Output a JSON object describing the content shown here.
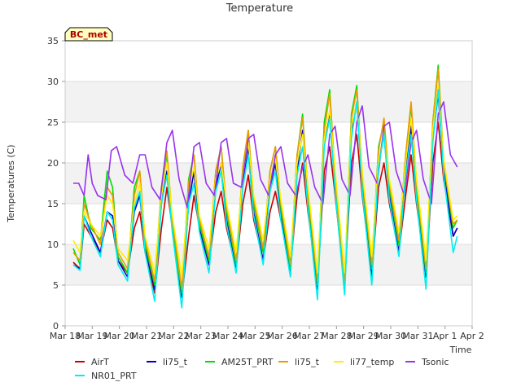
{
  "chart_data": {
    "type": "line",
    "title": "Temperature",
    "xlabel": "Time",
    "ylabel": "Temperatures (C)",
    "badge": "BC_met",
    "ylim": [
      0,
      35
    ],
    "yticks": [
      0,
      5,
      10,
      15,
      20,
      25,
      30,
      35
    ],
    "xlim": [
      0,
      15
    ],
    "xtick_labels": [
      "Mar 18",
      "Mar 19",
      "Mar 20",
      "Mar 21",
      "Mar 22",
      "Mar 23",
      "Mar 24",
      "Mar 25",
      "Mar 26",
      "Mar 27",
      "Mar 28",
      "Mar 29",
      "Mar 30",
      "Mar 31",
      "Apr 1",
      "Apr 2"
    ],
    "xtick_values": [
      0,
      1,
      2,
      3,
      4,
      5,
      6,
      7,
      8,
      9,
      10,
      11,
      12,
      13,
      14,
      15
    ],
    "grid": "horizontal bands",
    "legend_position": "bottom",
    "series": [
      {
        "name": "AirT",
        "color": "#cc0000",
        "x": [
          0.3,
          0.55,
          0.7,
          0.95,
          1.3,
          1.55,
          1.75,
          1.95,
          2.3,
          2.55,
          2.75,
          2.95,
          3.3,
          3.55,
          3.75,
          3.95,
          4.3,
          4.55,
          4.75,
          4.95,
          5.3,
          5.55,
          5.75,
          5.95,
          6.3,
          6.55,
          6.75,
          6.95,
          7.3,
          7.55,
          7.75,
          7.95,
          8.3,
          8.55,
          8.75,
          8.95,
          9.3,
          9.55,
          9.75,
          9.95,
          10.3,
          10.55,
          10.75,
          10.95,
          11.3,
          11.55,
          11.75,
          11.95,
          12.3,
          12.55,
          12.75,
          12.95,
          13.3,
          13.55,
          13.75,
          13.95,
          14.3,
          14.45
        ],
        "y": [
          7.8,
          7.0,
          12.5,
          11.0,
          9.0,
          13.0,
          12.0,
          8.0,
          6.5,
          12.0,
          14.0,
          9.0,
          4.0,
          12.0,
          17.0,
          12.0,
          3.5,
          11.0,
          16.0,
          12.0,
          7.5,
          14.0,
          16.5,
          12.0,
          7.0,
          15.0,
          18.5,
          13.0,
          8.0,
          14.0,
          16.5,
          13.0,
          7.0,
          16.0,
          20.0,
          14.0,
          5.0,
          19.0,
          22.0,
          16.0,
          5.0,
          20.0,
          23.5,
          16.0,
          6.0,
          17.0,
          20.0,
          15.0,
          9.0,
          16.0,
          21.0,
          15.0,
          6.0,
          20.0,
          25.0,
          18.0,
          11.0,
          12.0
        ]
      },
      {
        "name": "li75_t",
        "color": "#0000cc",
        "x": [
          0.3,
          0.55,
          0.7,
          0.95,
          1.3,
          1.55,
          1.75,
          1.95,
          2.3,
          2.55,
          2.75,
          2.95,
          3.3,
          3.55,
          3.75,
          3.95,
          4.3,
          4.55,
          4.75,
          4.95,
          5.3,
          5.55,
          5.75,
          5.95,
          6.3,
          6.55,
          6.75,
          6.95,
          7.3,
          7.55,
          7.75,
          7.95,
          8.3,
          8.55,
          8.75,
          8.95,
          9.3,
          9.55,
          9.75,
          9.95,
          10.3,
          10.55,
          10.75,
          10.95,
          11.3,
          11.55,
          11.75,
          11.95,
          12.3,
          12.55,
          12.75,
          12.95,
          13.3,
          13.55,
          13.75,
          13.95,
          14.3,
          14.45
        ],
        "y": [
          7.5,
          7.0,
          13.5,
          11.5,
          9.0,
          14.0,
          13.5,
          8.0,
          6.0,
          14.0,
          16.0,
          9.5,
          4.5,
          15.0,
          19.0,
          12.0,
          3.5,
          15.0,
          19.0,
          12.0,
          7.5,
          17.0,
          20.0,
          13.0,
          7.0,
          17.5,
          22.0,
          14.0,
          8.0,
          17.0,
          20.0,
          13.5,
          6.5,
          19.0,
          24.0,
          15.0,
          4.5,
          23.0,
          26.0,
          17.0,
          4.5,
          24.0,
          27.5,
          17.0,
          6.0,
          20.0,
          23.5,
          16.0,
          9.0,
          19.0,
          24.5,
          16.0,
          6.0,
          23.0,
          28.5,
          19.0,
          11.0,
          12.0
        ]
      },
      {
        "name": "AM25T_PRT",
        "color": "#00dd00",
        "x": [
          0.3,
          0.55,
          0.7,
          0.95,
          1.3,
          1.55,
          1.75,
          1.95,
          2.3,
          2.55,
          2.75,
          2.95,
          3.3,
          3.55,
          3.75,
          3.95,
          4.3,
          4.55,
          4.75,
          4.95,
          5.3,
          5.55,
          5.75,
          5.95,
          6.3,
          6.55,
          6.75,
          6.95,
          7.3,
          7.55,
          7.75,
          7.95,
          8.3,
          8.55,
          8.75,
          8.95,
          9.3,
          9.55,
          9.75,
          9.95,
          10.3,
          10.55,
          10.75,
          10.95,
          11.3,
          11.55,
          11.75,
          11.95,
          12.3,
          12.55,
          12.75,
          12.95,
          13.3,
          13.55,
          13.75,
          13.95,
          14.3,
          14.45
        ],
        "y": [
          9.5,
          7.5,
          16.0,
          12.0,
          10.5,
          19.0,
          17.0,
          8.5,
          6.5,
          17.0,
          19.0,
          10.0,
          5.0,
          17.0,
          21.0,
          12.0,
          4.0,
          18.0,
          21.0,
          12.5,
          8.0,
          19.0,
          22.0,
          14.0,
          7.5,
          19.5,
          24.0,
          15.0,
          9.0,
          19.0,
          22.0,
          14.5,
          7.0,
          21.0,
          26.0,
          16.0,
          5.0,
          25.0,
          29.0,
          18.0,
          5.0,
          26.0,
          29.5,
          18.0,
          7.0,
          22.0,
          25.0,
          17.0,
          10.0,
          21.0,
          27.0,
          17.0,
          6.5,
          25.0,
          32.0,
          20.0,
          12.0,
          13.0
        ]
      },
      {
        "name": "li75_t",
        "color": "#ee9900",
        "x": [
          0.3,
          0.55,
          0.7,
          0.95,
          1.3,
          1.55,
          1.75,
          1.95,
          2.3,
          2.55,
          2.75,
          2.95,
          3.3,
          3.55,
          3.75,
          3.95,
          4.3,
          4.55,
          4.75,
          4.95,
          5.3,
          5.55,
          5.75,
          5.95,
          6.3,
          6.55,
          6.75,
          6.95,
          7.3,
          7.55,
          7.75,
          7.95,
          8.3,
          8.55,
          8.75,
          8.95,
          9.3,
          9.55,
          9.75,
          9.95,
          10.3,
          10.55,
          10.75,
          10.95,
          11.3,
          11.55,
          11.75,
          11.95,
          12.3,
          12.55,
          12.75,
          12.95,
          13.3,
          13.55,
          13.75,
          13.95,
          14.3,
          14.45
        ],
        "y": [
          9.0,
          8.0,
          15.0,
          12.5,
          10.0,
          17.0,
          16.0,
          9.0,
          7.0,
          16.0,
          19.0,
          10.5,
          5.5,
          17.0,
          21.5,
          13.0,
          4.5,
          17.5,
          21.0,
          13.0,
          8.5,
          19.0,
          22.0,
          14.5,
          8.0,
          19.5,
          24.0,
          15.5,
          9.5,
          19.0,
          22.0,
          15.0,
          7.5,
          21.0,
          25.5,
          16.5,
          5.5,
          24.0,
          28.5,
          18.5,
          5.5,
          25.5,
          29.0,
          18.5,
          7.5,
          21.5,
          25.5,
          17.5,
          10.5,
          21.0,
          27.5,
          17.5,
          7.0,
          25.0,
          31.5,
          20.0,
          12.5,
          13.0
        ]
      },
      {
        "name": "li77_temp",
        "color": "#ffee00",
        "x": [
          0.3,
          0.55,
          0.7,
          0.95,
          1.3,
          1.55,
          1.75,
          1.95,
          2.3,
          2.55,
          2.75,
          2.95,
          3.3,
          3.55,
          3.75,
          3.95,
          4.3,
          4.55,
          4.75,
          4.95,
          5.3,
          5.55,
          5.75,
          5.95,
          6.3,
          6.55,
          6.75,
          6.95,
          7.3,
          7.55,
          7.75,
          7.95,
          8.3,
          8.55,
          8.75,
          8.95,
          9.3,
          9.55,
          9.75,
          9.95,
          10.3,
          10.55,
          10.75,
          10.95,
          11.3,
          11.55,
          11.75,
          11.95,
          12.3,
          12.55,
          12.75,
          12.95,
          13.3,
          13.55,
          13.75,
          13.95,
          14.3,
          14.45
        ],
        "y": [
          10.5,
          9.0,
          14.0,
          12.5,
          11.0,
          16.0,
          15.0,
          9.5,
          8.0,
          15.0,
          17.5,
          11.0,
          6.5,
          16.0,
          20.0,
          13.5,
          6.0,
          16.5,
          19.5,
          13.5,
          9.5,
          18.0,
          20.0,
          15.0,
          9.0,
          18.5,
          22.5,
          16.0,
          10.5,
          18.0,
          20.5,
          15.5,
          8.5,
          20.0,
          23.5,
          17.0,
          6.5,
          23.0,
          26.5,
          19.0,
          6.5,
          24.5,
          27.5,
          19.0,
          8.5,
          20.5,
          23.5,
          18.0,
          11.5,
          20.0,
          25.5,
          18.0,
          8.0,
          24.0,
          29.5,
          20.5,
          13.0,
          13.5
        ]
      },
      {
        "name": "Tsonic",
        "color": "#9933ee",
        "x": [
          0.3,
          0.5,
          0.7,
          0.85,
          1.0,
          1.2,
          1.5,
          1.7,
          1.9,
          2.2,
          2.5,
          2.75,
          2.95,
          3.2,
          3.5,
          3.75,
          3.95,
          4.2,
          4.5,
          4.75,
          4.95,
          5.2,
          5.5,
          5.75,
          5.95,
          6.2,
          6.5,
          6.75,
          6.95,
          7.2,
          7.5,
          7.75,
          7.95,
          8.2,
          8.5,
          8.75,
          8.95,
          9.2,
          9.5,
          9.75,
          9.95,
          10.2,
          10.5,
          10.75,
          10.95,
          11.2,
          11.5,
          11.75,
          11.95,
          12.2,
          12.5,
          12.75,
          12.95,
          13.2,
          13.5,
          13.75,
          13.95,
          14.2,
          14.45
        ],
        "y": [
          17.5,
          17.5,
          16.0,
          21.0,
          17.5,
          16.0,
          15.5,
          21.5,
          22.0,
          18.5,
          17.5,
          21.0,
          21.0,
          17.0,
          15.5,
          22.5,
          24.0,
          18.0,
          14.5,
          22.0,
          22.5,
          17.5,
          16.0,
          22.5,
          23.0,
          17.5,
          17.0,
          23.0,
          23.5,
          18.0,
          16.0,
          21.0,
          22.0,
          17.5,
          16.0,
          19.5,
          21.0,
          17.0,
          15.0,
          23.5,
          24.5,
          18.0,
          16.0,
          25.0,
          27.0,
          19.5,
          17.5,
          24.5,
          25.0,
          19.0,
          16.0,
          22.5,
          24.0,
          18.0,
          15.0,
          26.0,
          27.5,
          21.0,
          19.5
        ]
      },
      {
        "name": "NR01_PRT",
        "color": "#00eeee",
        "x": [
          0.3,
          0.55,
          0.7,
          0.95,
          1.3,
          1.55,
          1.75,
          1.95,
          2.3,
          2.55,
          2.75,
          2.95,
          3.3,
          3.55,
          3.75,
          3.95,
          4.3,
          4.55,
          4.75,
          4.95,
          5.3,
          5.55,
          5.75,
          5.95,
          6.3,
          6.55,
          6.75,
          6.95,
          7.3,
          7.55,
          7.75,
          7.95,
          8.3,
          8.55,
          8.75,
          8.95,
          9.3,
          9.55,
          9.75,
          9.95,
          10.3,
          10.55,
          10.75,
          10.95,
          11.3,
          11.55,
          11.75,
          11.95,
          12.3,
          12.55,
          12.75,
          12.95,
          13.3,
          13.55,
          13.75,
          13.95,
          14.3,
          14.45
        ],
        "y": [
          7.5,
          6.8,
          13.5,
          11.0,
          8.5,
          14.0,
          13.0,
          7.5,
          5.5,
          14.5,
          16.5,
          9.0,
          3.0,
          15.0,
          18.5,
          11.5,
          2.2,
          15.0,
          17.5,
          11.5,
          6.5,
          16.5,
          19.0,
          12.5,
          6.5,
          17.0,
          21.0,
          13.5,
          7.5,
          16.5,
          19.0,
          13.0,
          6.0,
          18.5,
          22.0,
          14.5,
          3.2,
          22.0,
          25.5,
          16.5,
          3.8,
          23.0,
          27.5,
          16.5,
          5.0,
          19.5,
          23.5,
          15.5,
          8.5,
          18.5,
          23.5,
          15.5,
          4.5,
          22.5,
          29.0,
          18.5,
          9.0,
          11.0
        ]
      }
    ],
    "legend_order": [
      0,
      1,
      2,
      3,
      4,
      5,
      6
    ]
  }
}
